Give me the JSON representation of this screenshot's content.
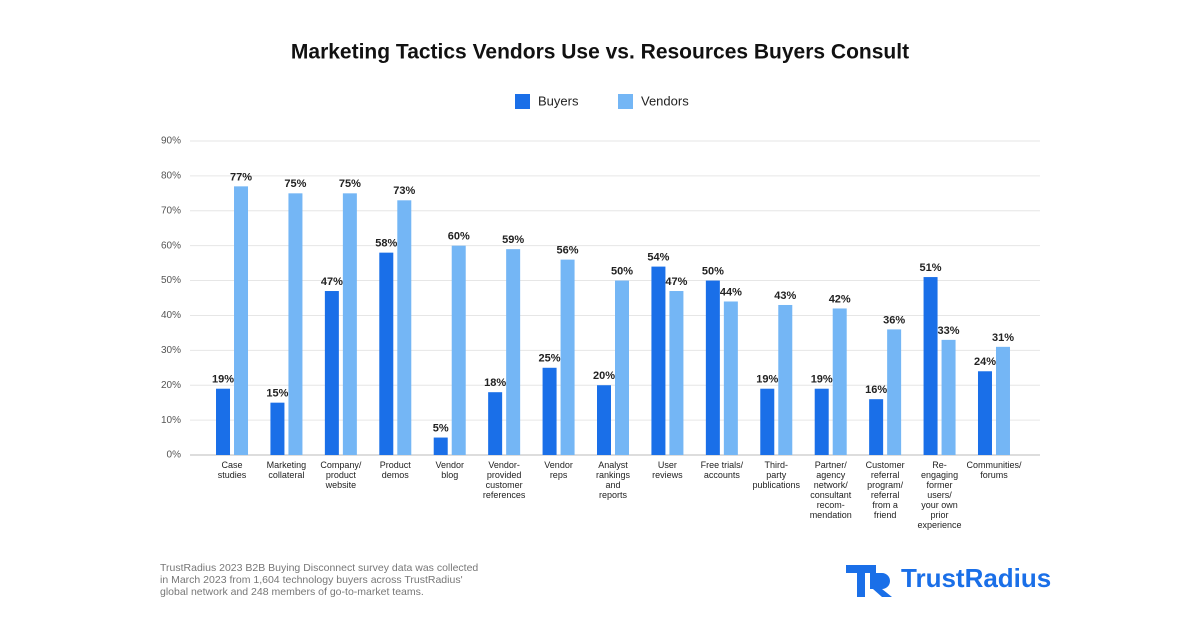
{
  "chart_data": {
    "type": "bar",
    "title": "Marketing Tactics Vendors Use vs. Resources Buyers Consult",
    "categories": [
      "Case\nstudies",
      "Marketing\ncollateral",
      "Company/\nproduct\nwebsite",
      "Product\ndemos",
      "Vendor\nblog",
      "Vendor-\nprovided\ncustomer\nreferences",
      "Vendor\nreps",
      "Analyst\nrankings\nand\nreports",
      "User\nreviews",
      "Free trials/\naccounts",
      "Third-\nparty\npublications",
      "Partner/\nagency\nnetwork/\nconsultant\nrecom-\nmendation",
      "Customer\nreferral\nprogram/\nreferral\nfrom a\nfriend",
      "Re-\nengaging\nformer\nusers/\nyour own\nprior\nexperience",
      "Communities/\nforums"
    ],
    "series": [
      {
        "name": "Buyers",
        "color": "#1a6fe8",
        "values": [
          19,
          15,
          47,
          58,
          5,
          18,
          25,
          20,
          54,
          50,
          19,
          19,
          16,
          51,
          24
        ],
        "value_labels": [
          "19%",
          "15%",
          "47%",
          "58%",
          "5%",
          "18%",
          "25%",
          "20%",
          "54%",
          "50%",
          "19%",
          "19%",
          "16%",
          "51%",
          "24%"
        ]
      },
      {
        "name": "Vendors",
        "color": "#74b6f5",
        "values": [
          77,
          75,
          75,
          73,
          60,
          59,
          56,
          50,
          47,
          44,
          43,
          42,
          36,
          33,
          31
        ],
        "value_labels": [
          "77%",
          "75%",
          "75%",
          "73%",
          "60%",
          "59%",
          "56%",
          "50%",
          "47%",
          "44%",
          "43%",
          "42%",
          "36%",
          "33%",
          "31%"
        ]
      }
    ],
    "ylim": [
      0,
      90
    ],
    "yticks": [
      {
        "value": 0,
        "label": "0%"
      },
      {
        "value": 10,
        "label": "10%"
      },
      {
        "value": 20,
        "label": "20%"
      },
      {
        "value": 30,
        "label": "30%"
      },
      {
        "value": 40,
        "label": "40%"
      },
      {
        "value": 50,
        "label": "50%"
      },
      {
        "value": 60,
        "label": "60%"
      },
      {
        "value": 70,
        "label": "70%"
      },
      {
        "value": 80,
        "label": "80%"
      },
      {
        "value": 90,
        "label": "90%"
      }
    ],
    "grid": true,
    "legend": "top"
  },
  "footnote": [
    "TrustRadius 2023 B2B Buying Disconnect survey data was collected",
    "in March 2023 from 1,604 technology buyers across TrustRadius'",
    "global network and 248 members of go-to-market teams."
  ],
  "logo": "TrustRadius"
}
